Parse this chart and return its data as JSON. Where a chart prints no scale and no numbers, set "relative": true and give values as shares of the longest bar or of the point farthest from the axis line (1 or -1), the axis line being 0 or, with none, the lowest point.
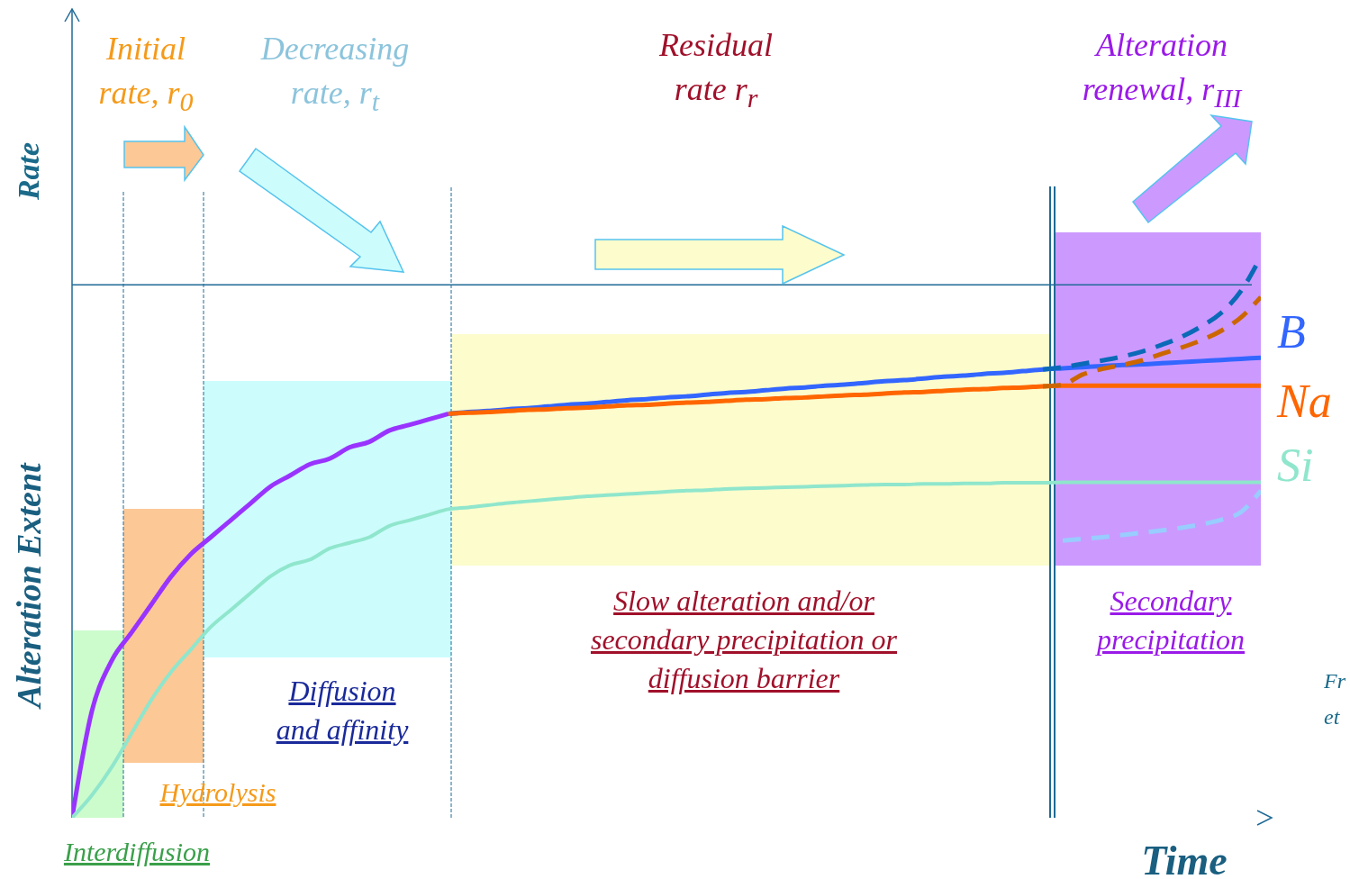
{
  "chart_data": {
    "type": "line",
    "relative": true,
    "xlabel": "Time",
    "ylabel": "Alteration Extent",
    "line_style": "solid",
    "categories": [
      null,
      null,
      null,
      null,
      null,
      null,
      null,
      null,
      null,
      null,
      null,
      null,
      null,
      null,
      null,
      null,
      null,
      null,
      null,
      null,
      null,
      null,
      null,
      null,
      null,
      null,
      null,
      null,
      null,
      null,
      null,
      null,
      null,
      null,
      null,
      null,
      null,
      null,
      null,
      null,
      null,
      null,
      null,
      null,
      null,
      null,
      null,
      null,
      null,
      null,
      null,
      null,
      null,
      null,
      null,
      null,
      null,
      null,
      null,
      null,
      null
    ],
    "series": [
      {
        "color": "#9933ff",
        "values": [
          0,
          0.19,
          0.28,
          0.33,
          0.38,
          0.43,
          0.47,
          0.5,
          0.53,
          0.56,
          0.59,
          0.61,
          0.63,
          0.64,
          0.66,
          0.67,
          0.69,
          0.7,
          0.71,
          0.72,
          null,
          null,
          null,
          null,
          null,
          null,
          null,
          null,
          null,
          null,
          null,
          null,
          null,
          null,
          null,
          null,
          null,
          null,
          null,
          null,
          null,
          null,
          null,
          null,
          null,
          null,
          null,
          null,
          null,
          null,
          null,
          null,
          null,
          null,
          null,
          null,
          null,
          null,
          null,
          null,
          null
        ]
      },
      {
        "name": "B",
        "color": "#3366ff",
        "values": [
          null,
          null,
          null,
          null,
          null,
          null,
          null,
          null,
          null,
          null,
          null,
          null,
          null,
          null,
          null,
          null,
          null,
          null,
          null,
          0.72,
          0.723,
          0.725,
          0.728,
          0.73,
          0.733,
          0.736,
          0.738,
          0.741,
          0.744,
          0.746,
          0.749,
          0.751,
          0.754,
          0.757,
          0.759,
          0.762,
          0.765,
          0.767,
          0.77,
          0.772,
          0.775,
          0.778,
          0.78,
          0.783,
          0.786,
          0.788,
          0.791,
          0.793,
          0.796,
          0.799,
          0.801,
          0.803,
          0.805,
          0.807,
          0.808,
          0.81,
          0.812,
          0.814,
          0.816,
          0.818,
          0.82
        ]
      },
      {
        "name": "Na",
        "color": "#ff6600",
        "values": [
          null,
          null,
          null,
          null,
          null,
          null,
          null,
          null,
          null,
          null,
          null,
          null,
          null,
          null,
          null,
          null,
          null,
          null,
          null,
          0.72,
          0.722,
          0.723,
          0.725,
          0.727,
          0.728,
          0.73,
          0.731,
          0.733,
          0.735,
          0.736,
          0.738,
          0.74,
          0.741,
          0.743,
          0.745,
          0.746,
          0.748,
          0.749,
          0.751,
          0.753,
          0.754,
          0.756,
          0.758,
          0.759,
          0.761,
          0.763,
          0.764,
          0.766,
          0.767,
          0.769,
          0.77,
          0.77,
          0.77,
          0.77,
          0.77,
          0.77,
          0.77,
          0.77,
          0.77,
          0.77,
          0.77
        ]
      },
      {
        "name": "Si",
        "color": "#8fe6cc",
        "values": [
          0,
          0.04,
          0.09,
          0.15,
          0.21,
          0.26,
          0.3,
          0.34,
          0.37,
          0.4,
          0.43,
          0.45,
          0.46,
          0.48,
          0.49,
          0.5,
          0.52,
          0.53,
          0.54,
          0.55,
          0.553,
          0.557,
          0.561,
          0.564,
          0.567,
          0.57,
          0.573,
          0.575,
          0.577,
          0.579,
          0.581,
          0.583,
          0.584,
          0.586,
          0.587,
          0.588,
          0.589,
          0.59,
          0.591,
          0.592,
          0.593,
          0.594,
          0.594,
          0.595,
          0.595,
          0.596,
          0.596,
          0.597,
          0.597,
          0.597,
          0.598,
          0.598,
          0.598,
          0.598,
          0.598,
          0.598,
          0.598,
          0.598,
          0.598,
          0.598,
          0.598
        ]
      },
      {
        "color": "#0a6ab8",
        "line_style": "dashed",
        "values": [
          null,
          null,
          null,
          null,
          null,
          null,
          null,
          null,
          null,
          null,
          null,
          null,
          null,
          null,
          null,
          null,
          null,
          null,
          null,
          null,
          null,
          null,
          null,
          null,
          null,
          null,
          null,
          null,
          null,
          null,
          null,
          null,
          null,
          null,
          null,
          null,
          null,
          null,
          null,
          null,
          null,
          null,
          null,
          null,
          null,
          null,
          null,
          null,
          null,
          0.799,
          0.803,
          0.809,
          0.815,
          0.822,
          0.831,
          0.843,
          0.857,
          0.876,
          0.9,
          0.939,
          1.0
        ]
      },
      {
        "color": "#cc6600",
        "line_style": "dashed",
        "values": [
          null,
          null,
          null,
          null,
          null,
          null,
          null,
          null,
          null,
          null,
          null,
          null,
          null,
          null,
          null,
          null,
          null,
          null,
          null,
          null,
          null,
          null,
          null,
          null,
          null,
          null,
          null,
          null,
          null,
          null,
          null,
          null,
          null,
          null,
          null,
          null,
          null,
          null,
          null,
          null,
          null,
          null,
          null,
          null,
          null,
          null,
          null,
          null,
          null,
          0.769,
          0.772,
          0.79,
          0.8,
          0.807,
          0.815,
          0.827,
          0.838,
          0.851,
          0.868,
          0.892,
          0.928
        ]
      },
      {
        "color": "#99ccff",
        "line_style": "dashed",
        "values": [
          null,
          null,
          null,
          null,
          null,
          null,
          null,
          null,
          null,
          null,
          null,
          null,
          null,
          null,
          null,
          null,
          null,
          null,
          null,
          null,
          null,
          null,
          null,
          null,
          null,
          null,
          null,
          null,
          null,
          null,
          null,
          null,
          null,
          null,
          null,
          null,
          null,
          null,
          null,
          null,
          null,
          null,
          null,
          null,
          null,
          null,
          null,
          null,
          null,
          null,
          0.494,
          0.497,
          0.5,
          0.504,
          0.508,
          0.512,
          0.517,
          0.523,
          0.531,
          0.545,
          0.583
        ]
      }
    ],
    "ref_lines": [
      {
        "axis": "y",
        "value": 0.95,
        "color": "#1f6a96"
      }
    ],
    "annotations": [
      "Initial rate, r$_{0}$",
      "Decreasing rate, r$_{t}$",
      "Residual rate r$_{r}$",
      "Alteration renewal, r$_{III}$",
      "Rate",
      "Interdiffusion",
      "Hydrolysis",
      "Diffusion and affinity",
      "Slow alteration and/or secondary precipitation or diffusion barrier",
      "Secondary precipitation",
      "Fr",
      "et"
    ]
  }
}
